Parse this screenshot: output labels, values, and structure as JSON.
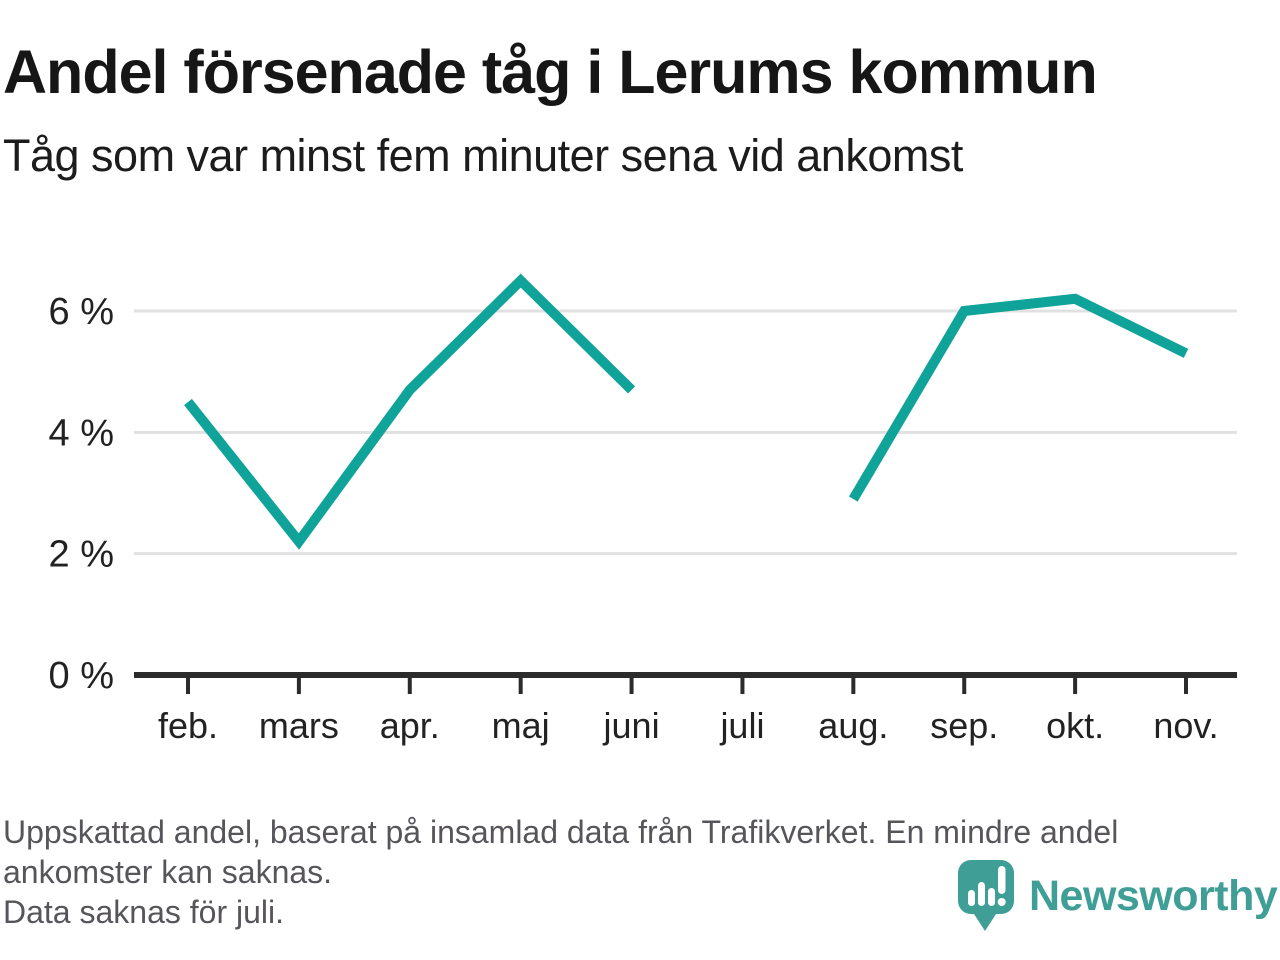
{
  "header": {
    "title": "Andel försenade tåg i Lerums kommun",
    "subtitle": "Tåg som var minst fem minuter sena vid ankomst"
  },
  "chart_data": {
    "type": "line",
    "title": "Andel försenade tåg i Lerums kommun",
    "subtitle": "Tåg som var minst fem minuter sena vid ankomst",
    "categories": [
      "feb.",
      "mars",
      "apr.",
      "maj",
      "juni",
      "juli",
      "aug.",
      "sep.",
      "okt.",
      "nov."
    ],
    "series": [
      {
        "name": "Andel försenade tåg",
        "values": [
          4.5,
          2.2,
          4.7,
          6.5,
          4.7,
          null,
          2.9,
          6.0,
          6.2,
          5.3
        ]
      }
    ],
    "unit": "%",
    "ylim": [
      0,
      6.9
    ],
    "yticks": [
      0,
      2,
      4,
      6
    ],
    "ytick_labels": [
      "0 %",
      "2 %",
      "4 %",
      "6 %"
    ],
    "grid": "horizontal-only",
    "legend": "none",
    "missing_data": "juli",
    "colors": {
      "line": "#10a39a",
      "axis": "#2b2b2b",
      "gridline": "#e1e1e1",
      "tick_label": "#222222"
    }
  },
  "footer": {
    "note_lines": [
      "Uppskattad andel, baserat på insamlad data från Trafikverket. En mindre andel",
      "ankomster kan saknas.",
      "Data saknas för juli."
    ],
    "brand": {
      "name": "Newsworthy",
      "color": "#3f9e95",
      "icon": "bar-chart-speech-bubble"
    }
  }
}
